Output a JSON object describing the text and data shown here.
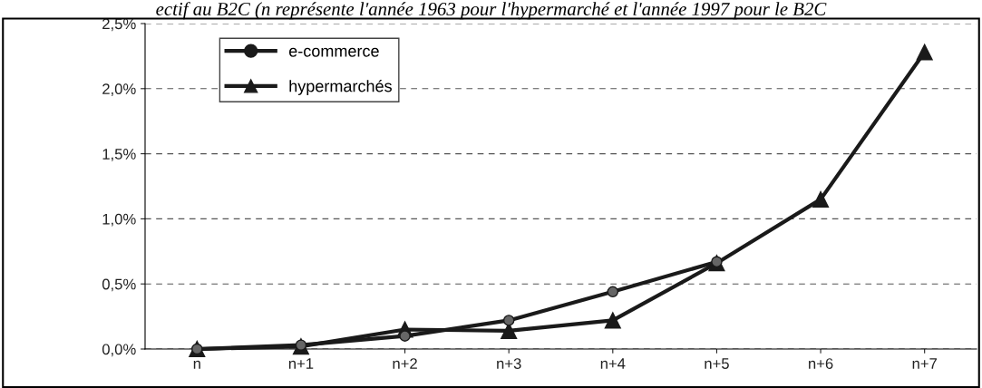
{
  "chart_data": {
    "type": "line",
    "title": "ectif au B2C (n représente l'année 1963 pour l'hypermarché et l'année 1997 pour le B2C",
    "categories": [
      "n",
      "n+1",
      "n+2",
      "n+3",
      "n+4",
      "n+5",
      "n+6",
      "n+7"
    ],
    "series": [
      {
        "name": "e-commerce",
        "color": "#1a1a1a",
        "marker": "circle",
        "values": [
          0.0,
          0.03,
          0.1,
          0.22,
          0.44,
          0.67,
          null,
          null
        ]
      },
      {
        "name": "hypermarchés",
        "color": "#1a1a1a",
        "marker": "triangle",
        "values": [
          0.0,
          0.02,
          0.15,
          0.14,
          0.22,
          0.66,
          1.15,
          2.28
        ]
      }
    ],
    "ylim": [
      0,
      2.5
    ],
    "yticks": [
      {
        "value": 0,
        "label": "0,0%"
      },
      {
        "value": 0.5,
        "label": "0,5%"
      },
      {
        "value": 1.0,
        "label": "1,0%"
      },
      {
        "value": 1.5,
        "label": "1,5%"
      },
      {
        "value": 2.0,
        "label": "2,0%"
      },
      {
        "value": 2.5,
        "label": "2,5%"
      }
    ],
    "grid": "y",
    "legend": "top left",
    "line_style": "solid"
  }
}
